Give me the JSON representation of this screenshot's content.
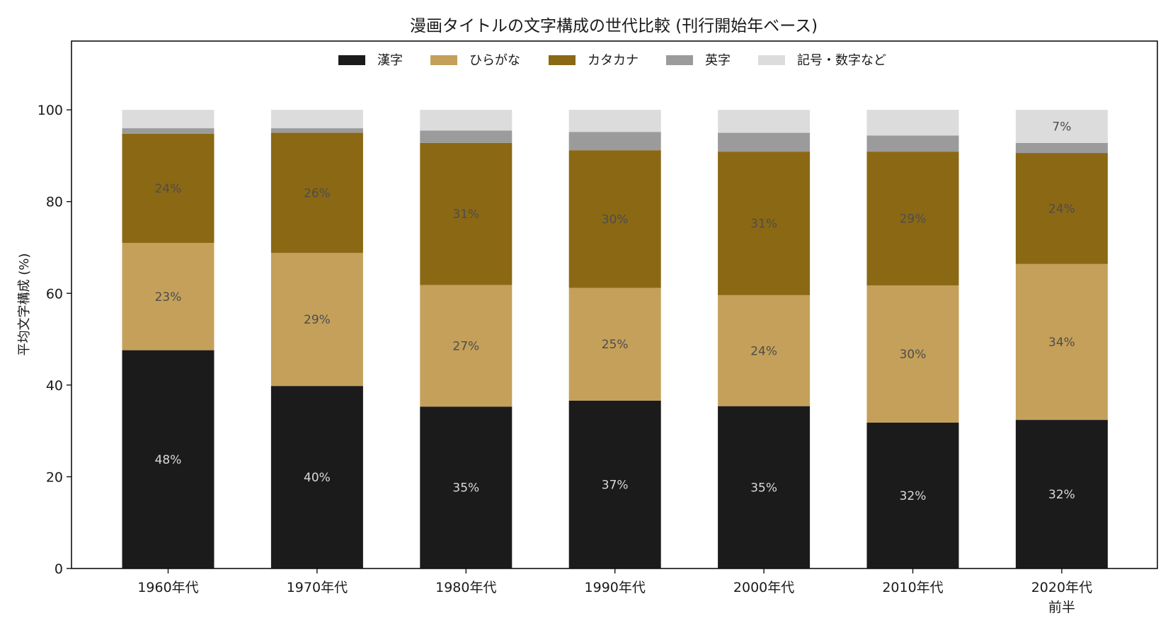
{
  "chart_data": {
    "type": "bar",
    "stacked": true,
    "title": "漫画タイトルの文字構成の世代比較 (刊行開始年ベース)",
    "xlabel": "",
    "ylabel": "平均文字構成 (%)",
    "ylim": [
      0,
      115
    ],
    "yticks": [
      0,
      20,
      40,
      60,
      80,
      100
    ],
    "grid": false,
    "legend_position": "top-center",
    "categories": [
      [
        "1960年代"
      ],
      [
        "1970年代"
      ],
      [
        "1980年代"
      ],
      [
        "1990年代"
      ],
      [
        "2000年代"
      ],
      [
        "2010年代"
      ],
      [
        "2020年代",
        "前半"
      ]
    ],
    "series": [
      {
        "name": "漢字",
        "color": "#1b1b1b",
        "label_color": "#d9d9d9",
        "values": [
          47.6,
          39.8,
          35.3,
          36.6,
          35.4,
          31.8,
          32.4
        ],
        "labels": [
          "48%",
          "40%",
          "35%",
          "37%",
          "35%",
          "32%",
          "32%"
        ]
      },
      {
        "name": "ひらがな",
        "color": "#c4a05a",
        "label_color": "#4d4d4d",
        "values": [
          23.4,
          29.0,
          26.5,
          24.6,
          24.2,
          29.9,
          34.0
        ],
        "labels": [
          "23%",
          "29%",
          "27%",
          "25%",
          "24%",
          "30%",
          "34%"
        ]
      },
      {
        "name": "カタカナ",
        "color": "#8b6814",
        "label_color": "#4d4d4d",
        "values": [
          23.8,
          26.2,
          31.0,
          30.0,
          31.3,
          29.2,
          24.2
        ],
        "labels": [
          "24%",
          "26%",
          "31%",
          "30%",
          "31%",
          "29%",
          "24%"
        ]
      },
      {
        "name": "英字",
        "color": "#9b9b9b",
        "label_color": "#4d4d4d",
        "values": [
          1.2,
          1.0,
          2.7,
          4.0,
          4.1,
          3.5,
          2.2
        ],
        "labels": [
          "",
          "",
          "",
          "",
          "",
          "",
          ""
        ]
      },
      {
        "name": "記号・数字など",
        "color": "#dcdcdc",
        "label_color": "#4d4d4d",
        "values": [
          4.0,
          4.0,
          4.5,
          4.8,
          5.0,
          5.6,
          7.2
        ],
        "labels": [
          "",
          "",
          "",
          "",
          "",
          "",
          "7%"
        ]
      }
    ]
  }
}
